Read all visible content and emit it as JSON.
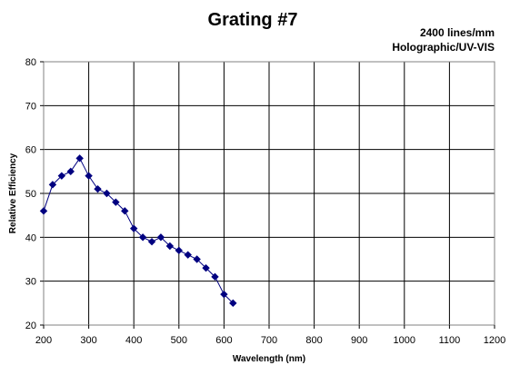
{
  "chart_data": {
    "type": "line",
    "title": "Grating #7",
    "subtitle_lines": [
      "2400 lines/mm",
      "Holographic/UV-VIS"
    ],
    "xlabel": "Wavelength (nm)",
    "ylabel": "Relative Efficiency",
    "xlim": [
      200,
      1200
    ],
    "ylim": [
      20,
      80
    ],
    "xticks": [
      200,
      300,
      400,
      500,
      600,
      700,
      800,
      900,
      1000,
      1100,
      1200
    ],
    "yticks": [
      20,
      30,
      40,
      50,
      60,
      70,
      80
    ],
    "grid": true,
    "legend": false,
    "series": [
      {
        "color": "#000080",
        "marker": "diamond",
        "points": [
          [
            200,
            46
          ],
          [
            220,
            52
          ],
          [
            240,
            54
          ],
          [
            260,
            55
          ],
          [
            280,
            58
          ],
          [
            300,
            54
          ],
          [
            320,
            51
          ],
          [
            340,
            50
          ],
          [
            360,
            48
          ],
          [
            380,
            46
          ],
          [
            400,
            42
          ],
          [
            420,
            40
          ],
          [
            440,
            39
          ],
          [
            460,
            40
          ],
          [
            480,
            38
          ],
          [
            500,
            37
          ],
          [
            520,
            36
          ],
          [
            540,
            35
          ],
          [
            560,
            33
          ],
          [
            580,
            31
          ],
          [
            600,
            27
          ],
          [
            620,
            25
          ]
        ]
      }
    ]
  }
}
